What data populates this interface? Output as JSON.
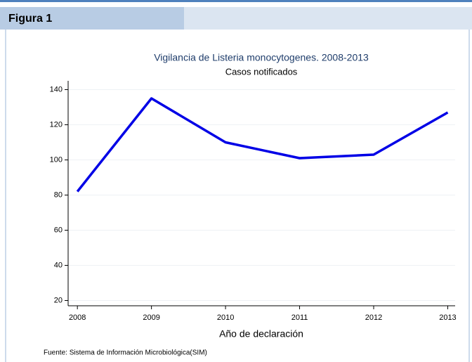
{
  "header": {
    "title": "Figura 1"
  },
  "chart_data": {
    "type": "line",
    "title": "Vigilancia de Listeria monocytogenes. 2008-2013",
    "subtitle": "Casos notificados",
    "x_label": "Año de declaración",
    "x": [
      2008,
      2009,
      2010,
      2011,
      2012,
      2013
    ],
    "values": [
      82,
      135,
      110,
      101,
      103,
      127
    ],
    "color": "#0000e6",
    "xlim": [
      2007.875,
      2013.1
    ],
    "xticks": [
      2008,
      2009,
      2010,
      2011,
      2012,
      2013
    ],
    "ylim": [
      17,
      145
    ],
    "yticks": [
      20,
      40,
      60,
      80,
      100,
      120,
      140
    ],
    "grid": true
  },
  "footer": "Fuente: Sistema de Información Microbiológica(SIM)"
}
